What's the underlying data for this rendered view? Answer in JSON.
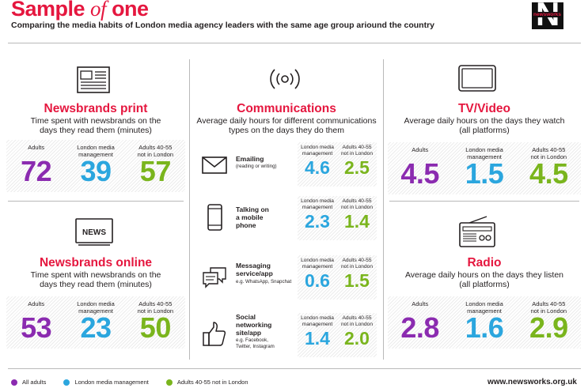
{
  "header": {
    "title_part1": "Sample ",
    "title_italic": "of",
    "title_part2": " one",
    "subtitle": "Comparing the media habits of London media agency leaders with the same age group ariound the country",
    "logo_text": "newsworks"
  },
  "colors": {
    "red": "#e5173f",
    "purple": "#8b2bb0",
    "blue": "#2ba6de",
    "green": "#7ab51d"
  },
  "panels": {
    "print": {
      "icon": "newspaper-icon",
      "title": "Newsbrands print",
      "desc_line1": "Time spent with newsbrands on the",
      "desc_line2": "days they read them (minutes)",
      "stats": [
        {
          "label_line1": "Adults",
          "label_line2": "",
          "value": "72"
        },
        {
          "label_line1": "London media",
          "label_line2": "management",
          "value": "39"
        },
        {
          "label_line1": "Adults 40-55",
          "label_line2": "not in London",
          "value": "57"
        }
      ]
    },
    "online": {
      "icon": "news-screen-icon",
      "icon_text": "NEWS",
      "title": "Newsbrands online",
      "desc_line1": "Time spent with newsbrands on the",
      "desc_line2": "days they read them (minutes)",
      "stats": [
        {
          "label_line1": "Adults",
          "label_line2": "",
          "value": "53"
        },
        {
          "label_line1": "London media",
          "label_line2": "management",
          "value": "23"
        },
        {
          "label_line1": "Adults 40-55",
          "label_line2": "not in London",
          "value": "50"
        }
      ]
    },
    "communications": {
      "icon": "broadcast-icon",
      "title": "Communications",
      "desc_line1": "Average daily hours for different communications",
      "desc_line2": "types on the days they do them",
      "rows": [
        {
          "icon": "envelope-icon",
          "title_lines": [
            "Emailing"
          ],
          "sub_lines": [
            "(reading or writing)"
          ],
          "london_label1": "London media",
          "london_label2": "management",
          "london_value": "4.6",
          "other_label1": "Adults 40-55",
          "other_label2": "not in London",
          "other_value": "2.5"
        },
        {
          "icon": "mobile-phone-icon",
          "title_lines": [
            "Talking on",
            "a mobile",
            "phone"
          ],
          "sub_lines": [],
          "london_label1": "London media",
          "london_label2": "management",
          "london_value": "2.3",
          "other_label1": "Adults 40-55",
          "other_label2": "not in London",
          "other_value": "1.4"
        },
        {
          "icon": "chat-bubbles-icon",
          "title_lines": [
            "Messaging",
            "service/app"
          ],
          "sub_lines": [
            "e.g. WhatsApp, Snapchat"
          ],
          "london_label1": "London media",
          "london_label2": "management",
          "london_value": "0.6",
          "other_label1": "Adults 40-55",
          "other_label2": "not in London",
          "other_value": "1.5"
        },
        {
          "icon": "thumbs-up-icon",
          "title_lines": [
            "Social",
            "networking",
            "site/app"
          ],
          "sub_lines": [
            "e.g. Facebook,",
            "Twitter, Instagram"
          ],
          "london_label1": "London media",
          "london_label2": "management",
          "london_value": "1.4",
          "other_label1": "Adults 40-55",
          "other_label2": "not in London",
          "other_value": "2.0"
        }
      ]
    },
    "tv": {
      "icon": "tv-icon",
      "title": "TV/Video",
      "desc_line1": "Average daily hours on the days they watch",
      "desc_line2": "(all platforms)",
      "stats": [
        {
          "label_line1": "Adults",
          "label_line2": "",
          "value": "4.5"
        },
        {
          "label_line1": "London media",
          "label_line2": "management",
          "value": "1.5"
        },
        {
          "label_line1": "Adults 40-55",
          "label_line2": "not in London",
          "value": "4.5"
        }
      ]
    },
    "radio": {
      "icon": "radio-icon",
      "title": "Radio",
      "desc_line1": "Average daily hours on the days they listen",
      "desc_line2": "(all platforms)",
      "stats": [
        {
          "label_line1": "Adults",
          "label_line2": "",
          "value": "2.8"
        },
        {
          "label_line1": "London media",
          "label_line2": "management",
          "value": "1.6"
        },
        {
          "label_line1": "Adults 40-55",
          "label_line2": "not in London",
          "value": "2.9"
        }
      ]
    }
  },
  "legend": [
    {
      "label": "All adults",
      "color": "#8b2bb0"
    },
    {
      "label": "London media management",
      "color": "#2ba6de"
    },
    {
      "label": "Adults 40-55 not in London",
      "color": "#7ab51d"
    }
  ],
  "footer": {
    "url": "www.newsworks.org.uk"
  }
}
